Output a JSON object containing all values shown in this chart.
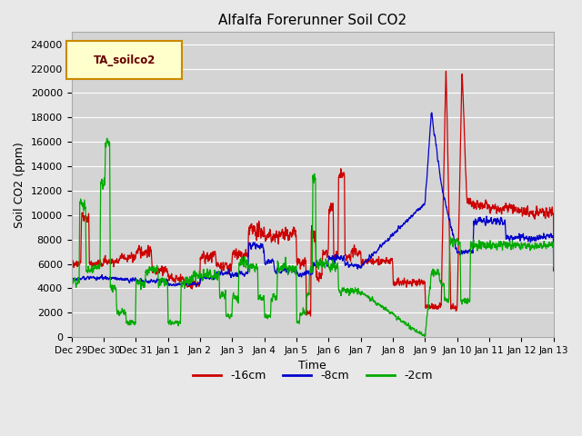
{
  "title": "Alfalfa Forerunner Soil CO2",
  "xlabel": "Time",
  "ylabel": "Soil CO2 (ppm)",
  "ylim": [
    0,
    25000
  ],
  "yticks": [
    0,
    2000,
    4000,
    6000,
    8000,
    10000,
    12000,
    14000,
    16000,
    18000,
    20000,
    22000,
    24000
  ],
  "background_color": "#e8e8e8",
  "plot_bg_color": "#d4d4d4",
  "grid_color": "#ffffff",
  "legend_label": "TA_soilco2",
  "legend_bg": "#ffffcc",
  "legend_border": "#cc8800",
  "line_colors": {
    "16cm": "#cc0000",
    "8cm": "#0000cc",
    "2cm": "#00aa00"
  },
  "line_labels": [
    "-16cm",
    "-8cm",
    "-2cm"
  ],
  "xticklabels": [
    "Dec 29",
    "Dec 30",
    "Dec 31",
    "Jan 1",
    "Jan 2",
    "Jan 3",
    "Jan 4",
    "Jan 5",
    "Jan 6",
    "Jan 7",
    "Jan 8",
    "Jan 9",
    "Jan 10",
    "Jan 11",
    "Jan 12",
    "Jan 13"
  ],
  "num_days": 15,
  "seed": 42
}
